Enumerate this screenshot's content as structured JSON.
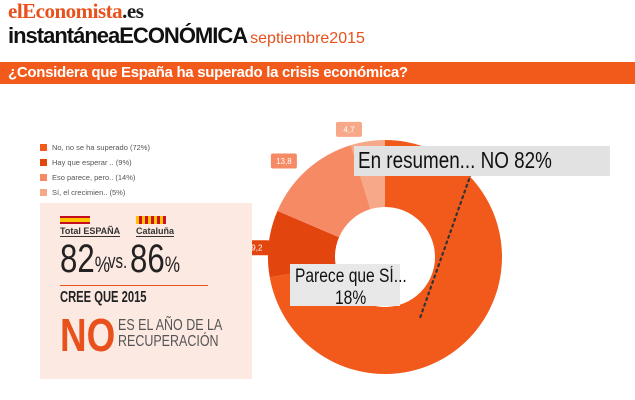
{
  "header": {
    "brand_el": "el",
    "brand_eco": "Economista",
    "brand_es": ".es",
    "subtitle_main": "instantáneaECONÓMICA",
    "subtitle_date": "septiembre2015"
  },
  "question": "¿Considera que España ha superado la crisis económica?",
  "chart_data": {
    "type": "pie",
    "title": "¿Considera que España ha superado la crisis económica?",
    "categories": [
      "No, no se ha superado",
      "Hay que esperar..",
      "Eso parece, pero..",
      "Sí, el crecimien.."
    ],
    "values": [
      72,
      9.2,
      13.8,
      4.7
    ],
    "legend": [
      "No, no se ha superado (72%)",
      "Hay que esperar .. (9%)",
      "Eso parece, pero.. (14%)",
      "Sí, el crecimien.. (5%)"
    ],
    "data_labels": [
      "",
      "9,2",
      "13,8",
      "4,7"
    ],
    "colors": [
      "#f25a1c",
      "#e3450f",
      "#f58a64",
      "#f7a888"
    ],
    "legend_placement": "top-left"
  },
  "summary": {
    "no_text": "En resumen... NO  82%",
    "si_line1": "Parece que SÍ...",
    "si_line2": "18%"
  },
  "panel": {
    "label_es": "Total ESPAÑA",
    "label_cat": "Cataluña",
    "value_es": "82",
    "value_cat": "86",
    "pct": "%",
    "vs": "vs.",
    "cree": "CREE QUE 2015",
    "no": "NO",
    "line1": "ES EL AÑO DE LA",
    "line2": "RECUPERACIÓN"
  }
}
